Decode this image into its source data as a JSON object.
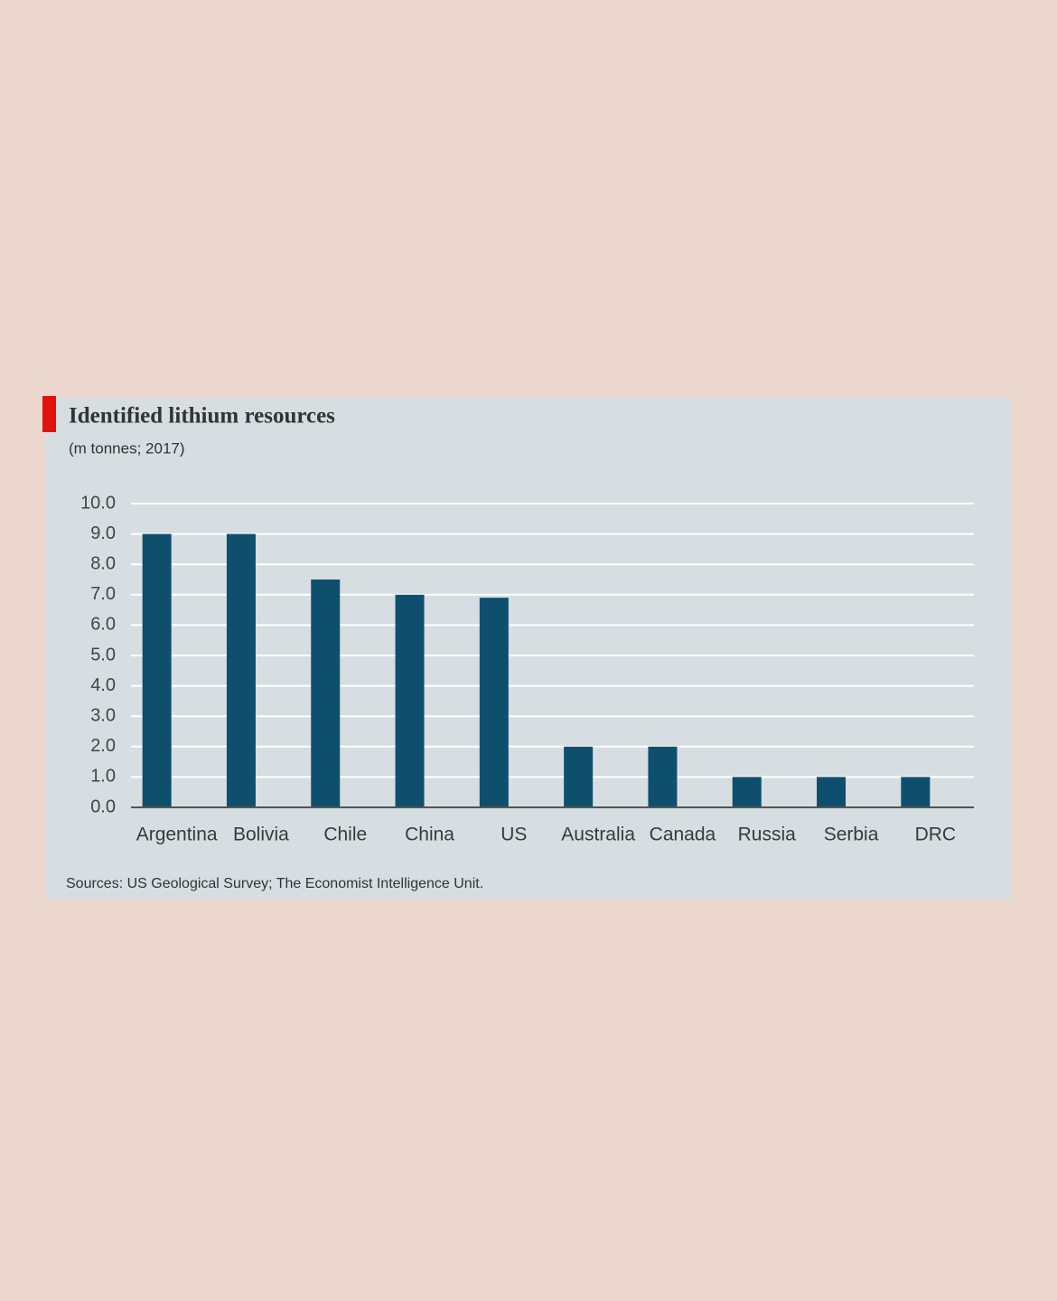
{
  "chart_data": {
    "type": "bar",
    "title": "Identified lithium resources",
    "subtitle": "(m tonnes; 2017)",
    "source": "Sources: US Geological Survey; The Economist Intelligence Unit.",
    "categories": [
      "Argentina",
      "Bolivia",
      "Chile",
      "China",
      "US",
      "Australia",
      "Canada",
      "Russia",
      "Serbia",
      "DRC"
    ],
    "values": [
      9.0,
      9.0,
      7.5,
      7.0,
      6.9,
      2.0,
      2.0,
      1.0,
      1.0,
      1.0
    ],
    "color": "#0f4f6e",
    "ylim": [
      0,
      10
    ],
    "yticks": [
      {
        "value": 0,
        "label": "0.0"
      },
      {
        "value": 1,
        "label": "1.0"
      },
      {
        "value": 2,
        "label": "2.0"
      },
      {
        "value": 3,
        "label": "3.0"
      },
      {
        "value": 4,
        "label": "4.0"
      },
      {
        "value": 5,
        "label": "5.0"
      },
      {
        "value": 6,
        "label": "6.0"
      },
      {
        "value": 7,
        "label": "7.0"
      },
      {
        "value": 8,
        "label": "8.0"
      },
      {
        "value": 9,
        "label": "9.0"
      },
      {
        "value": 10,
        "label": "10.0"
      }
    ],
    "grid": true
  }
}
